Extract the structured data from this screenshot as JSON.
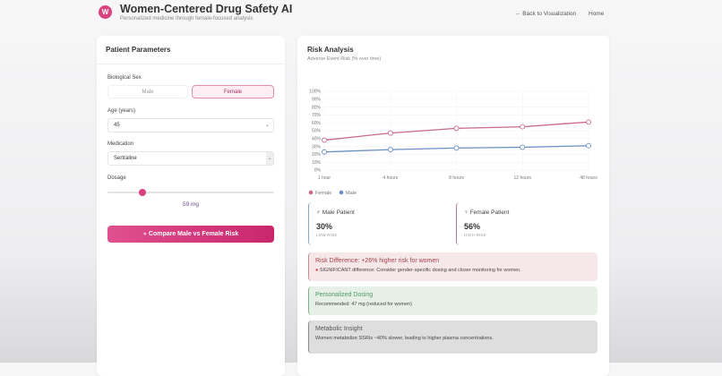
{
  "header": {
    "title": "Women-Centered Drug Safety AI",
    "subtitle": "Personalized medicine through female-focused analysis",
    "logo_text": "W",
    "nav": [
      "← Back to Visualization",
      "Home"
    ]
  },
  "params": {
    "title": "Patient Parameters",
    "sex_label": "Biological Sex",
    "sex_options": [
      "Male",
      "Female"
    ],
    "sex_selected": "Female",
    "age_label": "Age (years)",
    "age_value": "45",
    "med_label": "Medication",
    "med_value": "Sertraline",
    "dosage_label": "Dosage",
    "dosage_value": "59 mg",
    "dosage_fraction": 0.21,
    "compare_button": "Compare Male vs Female Risk"
  },
  "risk": {
    "title": "Risk Analysis",
    "subtitle": "Adverse Event Risk (% over time)",
    "male": {
      "label": "Male Patient",
      "value": "30%",
      "level": "LOW RISK"
    },
    "female": {
      "label": "Female Patient",
      "value": "56%",
      "level": "HIGH RISK"
    },
    "difference": {
      "title": "Risk Difference: +26% higher risk for women",
      "text": "SIGNIFICANT difference: Consider gender-specific dosing and closer monitoring for women."
    },
    "dosing": {
      "title": "Personalized Dosing",
      "text": "Recommended: 47 mg (reduced for women)"
    },
    "insight": {
      "title": "Metabolic Insight",
      "text": "Women metabolize SSRIs ~40% slower, leading to higher plasma concentrations."
    }
  },
  "chart_data": {
    "type": "line",
    "categories": [
      "1 hour",
      "4 hours",
      "8 hours",
      "12 hours",
      "48 hours"
    ],
    "ylim": [
      0,
      100
    ],
    "yticks": [
      "0%",
      "10%",
      "20%",
      "30%",
      "40%",
      "50%",
      "60%",
      "70%",
      "80%",
      "90%",
      "100%"
    ],
    "grid": true,
    "legend_placement": "bottom-left",
    "series": [
      {
        "name": "Female",
        "color": "#c9678f",
        "values": [
          38,
          47,
          53,
          55,
          61
        ]
      },
      {
        "name": "Male",
        "color": "#6b8fc4",
        "values": [
          23,
          26,
          28,
          29,
          31
        ]
      }
    ]
  },
  "colors": {
    "accent": "#d9417f",
    "male": "#4a7ac0",
    "female": "#c9678f"
  }
}
